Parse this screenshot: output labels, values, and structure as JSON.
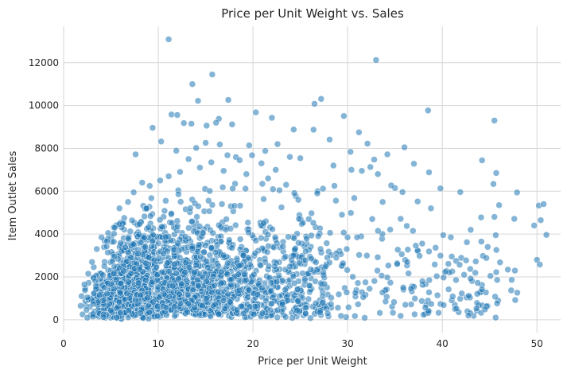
{
  "chart_data": {
    "type": "scatter",
    "title": "Price per Unit Weight vs. Sales",
    "xlabel": "Price per Unit Weight",
    "ylabel": "Item Outlet Sales",
    "xlim": [
      0,
      52.5
    ],
    "ylim": [
      -600,
      13700
    ],
    "xticks": [
      0,
      10,
      20,
      30,
      40,
      50
    ],
    "yticks": [
      0,
      2000,
      4000,
      6000,
      8000,
      10000,
      12000
    ],
    "xtick_labels": [
      "0",
      "10",
      "20",
      "30",
      "40",
      "50"
    ],
    "ytick_labels": [
      "0",
      "2000",
      "4000",
      "6000",
      "8000",
      "10000",
      "12000"
    ],
    "grid": true,
    "color": "#1f77b4",
    "series": [
      {
        "points": [
          [
            11.1,
            13090
          ],
          [
            33.0,
            12120
          ],
          [
            15.7,
            11450
          ],
          [
            13.6,
            11000
          ],
          [
            14.2,
            10220
          ],
          [
            17.4,
            10260
          ],
          [
            27.2,
            10310
          ],
          [
            26.5,
            10080
          ],
          [
            20.3,
            9680
          ],
          [
            38.5,
            9770
          ],
          [
            11.4,
            9580
          ],
          [
            12.0,
            9560
          ],
          [
            13.5,
            9150
          ],
          [
            16.4,
            9380
          ],
          [
            45.5,
            9300
          ],
          [
            29.6,
            9510
          ],
          [
            16.1,
            9200
          ],
          [
            15.1,
            9060
          ],
          [
            17.8,
            9120
          ],
          [
            22.0,
            9430
          ],
          [
            9.4,
            8960
          ],
          [
            12.7,
            9180
          ],
          [
            31.2,
            8750
          ],
          [
            24.3,
            8880
          ],
          [
            26.4,
            8870
          ],
          [
            32.1,
            8220
          ],
          [
            28.1,
            8410
          ],
          [
            10.3,
            8320
          ],
          [
            15.0,
            8260
          ],
          [
            16.5,
            8180
          ],
          [
            19.6,
            8140
          ],
          [
            21.3,
            7880
          ],
          [
            30.3,
            7840
          ],
          [
            36.0,
            8050
          ],
          [
            19.9,
            7680
          ],
          [
            7.6,
            7720
          ],
          [
            11.9,
            7890
          ],
          [
            14.0,
            8020
          ],
          [
            18.2,
            7590
          ],
          [
            25.0,
            7540
          ],
          [
            32.8,
            7480
          ],
          [
            34.2,
            7720
          ],
          [
            38.6,
            6880
          ],
          [
            44.2,
            7440
          ],
          [
            45.7,
            6850
          ],
          [
            47.9,
            5940
          ],
          [
            45.4,
            6340
          ],
          [
            35.0,
            6150
          ],
          [
            37.0,
            7280
          ],
          [
            39.8,
            6130
          ],
          [
            41.9,
            5960
          ],
          [
            46.0,
            5350
          ],
          [
            50.2,
            5330
          ],
          [
            50.7,
            5400
          ],
          [
            49.7,
            4400
          ],
          [
            50.4,
            4650
          ],
          [
            51.0,
            3960
          ],
          [
            47.6,
            4710
          ],
          [
            44.1,
            4780
          ],
          [
            43.0,
            4200
          ],
          [
            40.9,
            3850
          ],
          [
            40.1,
            3950
          ],
          [
            42.6,
            3620
          ],
          [
            45.5,
            4800
          ],
          [
            44.8,
            3400
          ],
          [
            45.7,
            2220
          ],
          [
            42.3,
            2100
          ],
          [
            41.0,
            2950
          ],
          [
            39.8,
            2990
          ],
          [
            38.6,
            3190
          ],
          [
            37.2,
            3460
          ],
          [
            36.3,
            2700
          ],
          [
            35.3,
            3270
          ],
          [
            34.3,
            2530
          ],
          [
            33.6,
            2060
          ],
          [
            36.7,
            1450
          ],
          [
            37.9,
            1800
          ],
          [
            38.6,
            1280
          ],
          [
            41.1,
            1090
          ],
          [
            42.8,
            1120
          ],
          [
            44.2,
            1420
          ],
          [
            45.8,
            1860
          ],
          [
            47.7,
            920
          ],
          [
            50.0,
            2800
          ],
          [
            50.3,
            2580
          ],
          [
            44.5,
            480
          ],
          [
            41.5,
            520
          ],
          [
            38.2,
            570
          ],
          [
            36.1,
            700
          ],
          [
            35.6,
            180
          ],
          [
            33.4,
            320
          ],
          [
            31.8,
            90
          ],
          [
            30.1,
            580
          ],
          [
            29.3,
            180
          ],
          [
            27.9,
            300
          ],
          [
            43.7,
            1210
          ],
          [
            40.3,
            2230
          ],
          [
            39.2,
            2580
          ],
          [
            37.6,
            2980
          ],
          [
            36.9,
            4150
          ],
          [
            35.6,
            4710
          ],
          [
            37.4,
            5520
          ],
          [
            38.8,
            5200
          ],
          [
            35.8,
            5960
          ],
          [
            34.6,
            6270
          ],
          [
            33.2,
            6800
          ],
          [
            31.5,
            6950
          ],
          [
            30.7,
            5680
          ],
          [
            29.4,
            4900
          ],
          [
            28.6,
            6250
          ],
          [
            27.4,
            6120
          ],
          [
            26.8,
            5900
          ],
          [
            28.5,
            7200
          ],
          [
            30.4,
            7000
          ],
          [
            32.4,
            7130
          ],
          [
            33.7,
            5500
          ],
          [
            34.5,
            4210
          ],
          [
            32.6,
            4700
          ],
          [
            31.0,
            3850
          ],
          [
            29.9,
            3300
          ],
          [
            28.8,
            2900
          ],
          [
            27.7,
            2500
          ],
          [
            26.9,
            3900
          ],
          [
            25.9,
            4700
          ],
          [
            24.8,
            5600
          ],
          [
            23.5,
            6300
          ],
          [
            22.4,
            7000
          ],
          [
            21.6,
            6600
          ],
          [
            23.9,
            7600
          ],
          [
            22.6,
            8200
          ],
          [
            20.9,
            7300
          ],
          [
            19.3,
            6800
          ],
          [
            18.6,
            7450
          ],
          [
            17.3,
            7680
          ],
          [
            16.9,
            6950
          ],
          [
            15.6,
            7350
          ],
          [
            14.4,
            7100
          ],
          [
            13.2,
            7500
          ],
          [
            12.3,
            6900
          ],
          [
            11.1,
            6700
          ],
          [
            10.2,
            6500
          ],
          [
            9.1,
            6250
          ],
          [
            8.3,
            6400
          ],
          [
            7.4,
            5950
          ],
          [
            6.8,
            5500
          ],
          [
            5.9,
            5200
          ],
          [
            5.4,
            4300
          ],
          [
            4.7,
            4050
          ],
          [
            4.0,
            3850
          ],
          [
            3.5,
            3300
          ],
          [
            3.0,
            2700
          ],
          [
            2.6,
            2150
          ],
          [
            2.2,
            1650
          ],
          [
            1.9,
            1100
          ],
          [
            1.8,
            650
          ],
          [
            2.0,
            250
          ],
          [
            2.5,
            100
          ],
          [
            3.1,
            150
          ],
          [
            4.2,
            120
          ],
          [
            5.6,
            100
          ]
        ]
      }
    ]
  }
}
